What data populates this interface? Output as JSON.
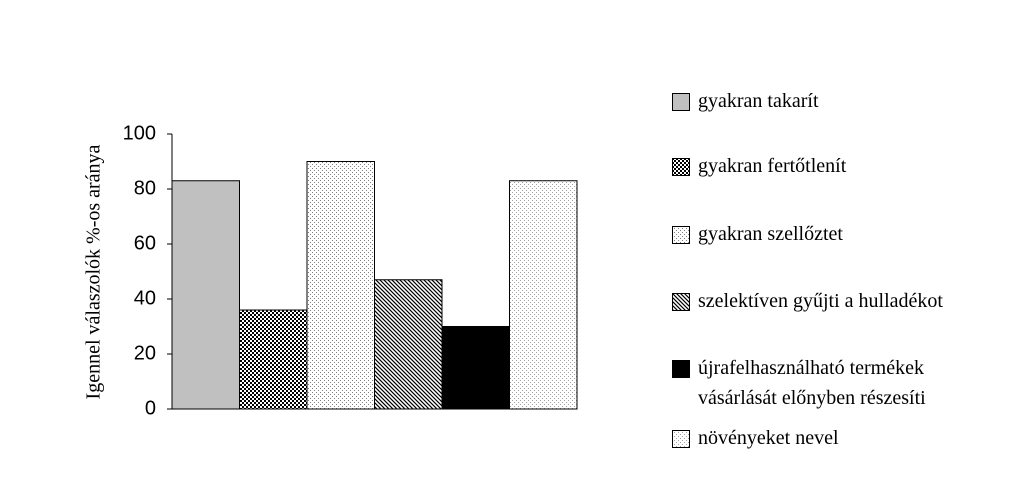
{
  "chart_data": {
    "type": "bar",
    "y_label": "Igennel válaszolók %-os aránya",
    "categories": [
      null
    ],
    "ylim": [
      0,
      100
    ],
    "yticks": [
      0,
      20,
      40,
      60,
      80,
      100
    ],
    "series": [
      {
        "name": "gyakran takarít",
        "color": "#c0c0c0",
        "pattern": "solid",
        "values": [
          83
        ]
      },
      {
        "name": "gyakran fertőtlenít",
        "color": "#000000",
        "pattern": "checker",
        "values": [
          36
        ]
      },
      {
        "name": "gyakran szellőztet",
        "color": "#808080",
        "pattern": "dots",
        "values": [
          90
        ]
      },
      {
        "name": "szelektíven gyűjti a hulladékot",
        "color": "#000000",
        "pattern": "diagonal",
        "values": [
          47
        ]
      },
      {
        "name": "újrafelhasználható termékek vásárlását előnyben részesíti",
        "color": "#000000",
        "pattern": "solid",
        "values": [
          30
        ]
      },
      {
        "name": "növényeket nevel",
        "color": "#a0a0a0",
        "pattern": "dots",
        "values": [
          83
        ]
      }
    ]
  }
}
